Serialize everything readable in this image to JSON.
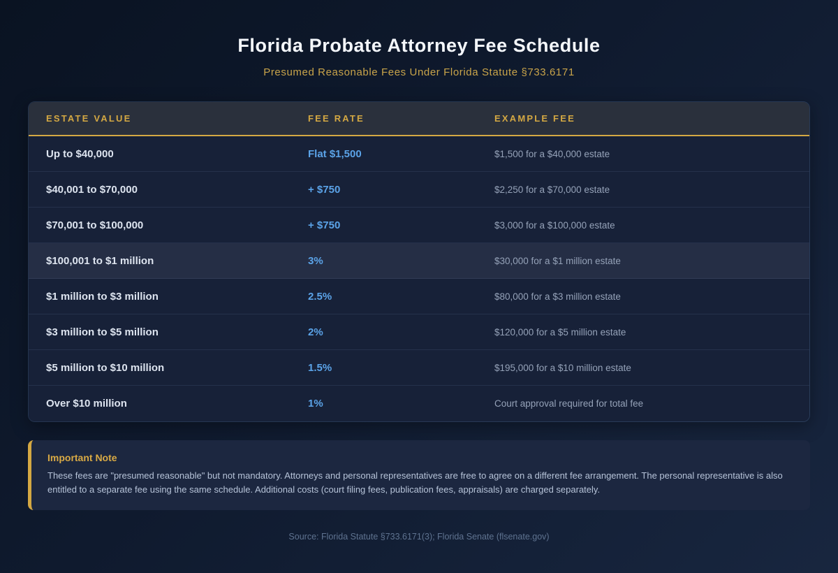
{
  "header": {
    "title": "Florida Probate Attorney Fee Schedule",
    "subtitle": "Presumed Reasonable Fees Under Florida Statute §733.6171"
  },
  "colors": {
    "accent_gold": "#d4a843",
    "rate_blue": "#5ba3e8",
    "page_navy": "#0f1a2e",
    "row_navy": "#172138",
    "highlight_row": "#252e45",
    "header_charcoal": "#2a303c"
  },
  "chart_data": {
    "type": "table",
    "title": "Florida Probate Attorney Fee Schedule",
    "subtitle": "Presumed Reasonable Fees Under Florida Statute §733.6171",
    "columns": [
      "ESTATE VALUE",
      "FEE RATE",
      "EXAMPLE FEE"
    ],
    "rows": [
      {
        "estate": "Up to $40,000",
        "rate": "Flat $1,500",
        "example": "$1,500 for a $40,000 estate"
      },
      {
        "estate": "$40,001 to $70,000",
        "rate": "+ $750",
        "example": "$2,250 for a $70,000 estate"
      },
      {
        "estate": "$70,001 to $100,000",
        "rate": "+ $750",
        "example": "$3,000 for a $100,000 estate"
      },
      {
        "estate": "$100,001 to $1 million",
        "rate": "3%",
        "example": "$30,000 for a $1 million estate",
        "highlighted": true
      },
      {
        "estate": "$1 million to $3 million",
        "rate": "2.5%",
        "example": "$80,000 for a $3 million estate"
      },
      {
        "estate": "$3 million to $5 million",
        "rate": "2%",
        "example": "$120,000 for a $5 million estate"
      },
      {
        "estate": "$5 million to $10 million",
        "rate": "1.5%",
        "example": "$195,000 for a $10 million estate"
      },
      {
        "estate": "Over $10 million",
        "rate": "1%",
        "example": "Court approval required for total fee"
      }
    ]
  },
  "note": {
    "title": "Important Note",
    "body": "These fees are \"presumed reasonable\" but not mandatory. Attorneys and personal representatives are free to agree on a different fee arrangement. The personal representative is also entitled to a separate fee using the same schedule. Additional costs (court filing fees, publication fees, appraisals) are charged separately."
  },
  "footer": {
    "source": "Source: Florida Statute §733.6171(3); Florida Senate (flsenate.gov)"
  }
}
